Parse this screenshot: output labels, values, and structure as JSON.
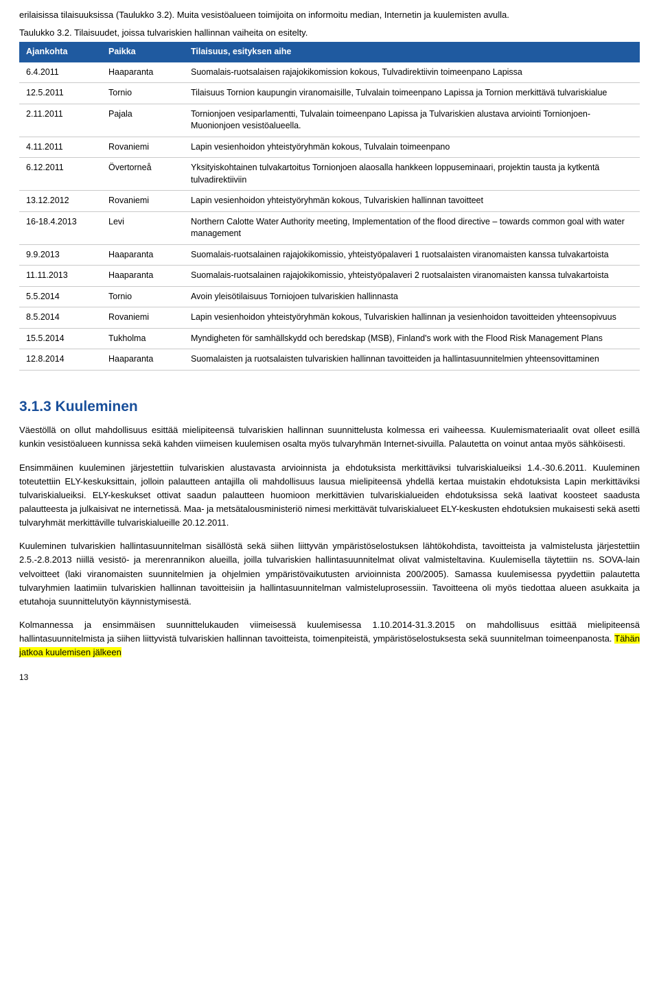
{
  "intro": "erilaisissa tilaisuuksissa (Taulukko 3.2). Muita vesistöalueen toimijoita on informoitu median, Internetin ja kuulemisten avulla.",
  "tableCaption": "Taulukko 3.2. Tilaisuudet, joissa tulvariskien hallinnan vaiheita on esitelty.",
  "table": {
    "headers": [
      "Ajankohta",
      "Paikka",
      "Tilaisuus, esityksen aihe"
    ],
    "rows": [
      [
        "6.4.2011",
        "Haaparanta",
        "Suomalais-ruotsalaisen rajajokikomission kokous, Tulvadirektiivin toimeenpano Lapissa"
      ],
      [
        "12.5.2011",
        "Tornio",
        "Tilaisuus Tornion kaupungin viranomaisille, Tulvalain toimeenpano Lapissa ja Tornion merkittävä tulvariskialue"
      ],
      [
        "2.11.2011",
        "Pajala",
        "Tornionjoen vesiparlamentti, Tulvalain toimeenpano Lapissa ja Tulvariskien alustava arviointi Tornionjoen-Muonionjoen vesistöalueella."
      ],
      [
        "4.11.2011",
        "Rovaniemi",
        "Lapin vesienhoidon yhteistyöryhmän kokous, Tulvalain toimeenpano"
      ],
      [
        "6.12.2011",
        "Övertorneå",
        "Yksityiskohtainen tulvakartoitus Tornionjoen alaosalla hankkeen loppuseminaari, projektin tausta ja kytkentä tulvadirektiiviin"
      ],
      [
        "13.12.2012",
        "Rovaniemi",
        "Lapin vesienhoidon yhteistyöryhmän kokous, Tulvariskien hallinnan tavoitteet"
      ],
      [
        "16-18.4.2013",
        "Levi",
        "Northern Calotte Water Authority meeting, Implementation of the flood directive – towards common goal with water management"
      ],
      [
        "9.9.2013",
        "Haaparanta",
        "Suomalais-ruotsalainen rajajokikomissio, yhteistyöpalaveri 1 ruotsalaisten viranomaisten kanssa tulvakartoista"
      ],
      [
        "11.11.2013",
        "Haaparanta",
        "Suomalais-ruotsalainen rajajokikomissio, yhteistyöpalaveri 2 ruotsalaisten viranomaisten kanssa tulvakartoista"
      ],
      [
        "5.5.2014",
        "Tornio",
        "Avoin yleisötilaisuus Torniojoen tulvariskien hallinnasta"
      ],
      [
        "8.5.2014",
        "Rovaniemi",
        "Lapin vesienhoidon yhteistyöryhmän kokous, Tulvariskien hallinnan ja vesienhoidon tavoitteiden yhteensopivuus"
      ],
      [
        "15.5.2014",
        "Tukholma",
        "Myndigheten för samhällskydd och beredskap (MSB), Finland's work with the Flood Risk Management Plans"
      ],
      [
        "12.8.2014",
        "Haaparanta",
        "Suomalaisten ja ruotsalaisten tulvariskien hallinnan tavoitteiden ja hallintasuunnitelmien yhteensovittaminen"
      ]
    ]
  },
  "sectionHeading": "3.1.3  Kuuleminen",
  "p1": "Väestöllä on ollut mahdollisuus esittää mielipiteensä tulvariskien hallinnan suunnittelusta kolmessa eri vaiheessa. Kuulemismateriaalit ovat olleet esillä kunkin vesistöalueen kunnissa sekä kahden viimeisen kuulemisen osalta myös tulvaryhmän Internet-sivuilla. Palautetta on voinut antaa myös sähköisesti.",
  "p2": "Ensimmäinen kuuleminen järjestettiin tulvariskien alustavasta arvioinnista ja ehdotuksista merkittäviksi tulvariskialueiksi 1.4.-30.6.2011. Kuuleminen toteutettiin ELY-keskuksittain, jolloin palautteen antajilla oli mahdollisuus lausua mielipiteensä yhdellä kertaa muistakin ehdotuksista Lapin merkittäviksi tulvariskialueiksi. ELY-keskukset ottivat saadun palautteen huomioon merkittävien tulvariskialueiden ehdotuksissa sekä laativat koosteet saadusta palautteesta ja julkaisivat ne internetissä. Maa- ja metsätalousministeriö nimesi merkittävät tulvariskialueet ELY-keskusten ehdotuksien mukaisesti sekä asetti tulvaryhmät merkittäville tulvariskialueille 20.12.2011.",
  "p3": "Kuuleminen tulvariskien hallintasuunnitelman sisällöstä sekä siihen liittyvän ympäristöselostuksen lähtökohdista, tavoitteista ja valmistelusta järjestettiin 2.5.-2.8.2013 niillä vesistö- ja merenrannikon alueilla, joilla tulvariskien hallintasuunnitelmat olivat valmisteltavina. Kuulemisella täytettiin ns. SOVA-lain velvoitteet (laki viranomaisten suunnitelmien ja ohjelmien ympäristövaikutusten arvioinnista 200/2005). Samassa kuulemisessa pyydettiin palautetta tulvaryhmien laatimiin tulvariskien hallinnan tavoitteisiin ja hallintasuunnitelman valmisteluprosessiin. Tavoitteena oli myös tiedottaa alueen asukkaita ja etutahoja suunnittelutyön käynnistymisestä.",
  "p4a": "Kolmannessa ja ensimmäisen suunnittelukauden viimeisessä kuulemisessa 1.10.2014-31.3.2015 on mahdollisuus esittää mielipiteensä hallintasuunnitelmista ja siihen liittyvistä tulvariskien hallinnan tavoitteista, toimenpiteistä, ympäristöselostuksesta sekä suunnitelman toimeenpanosta. ",
  "p4hl": "Tähän jatkoa kuulemisen jälkeen",
  "pageNum": "13"
}
